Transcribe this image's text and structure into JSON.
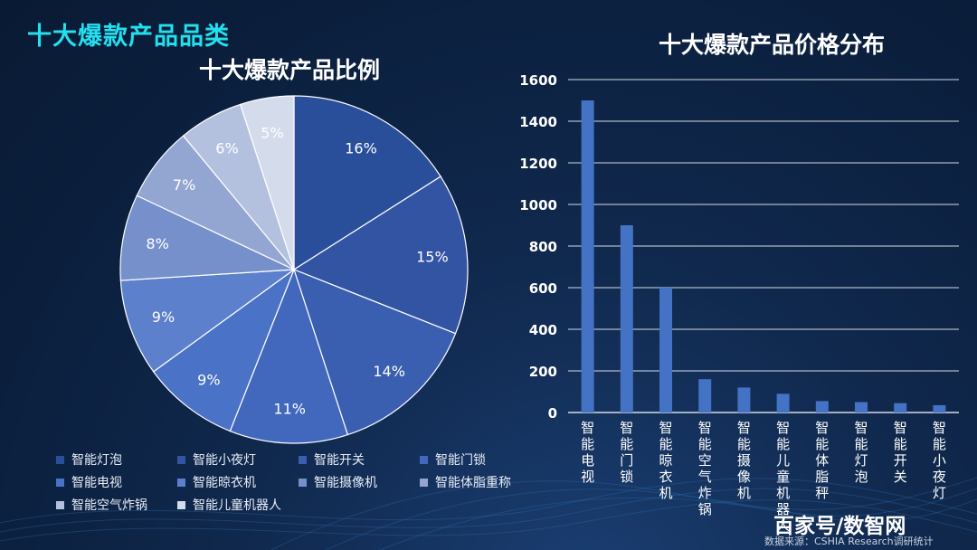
{
  "page": {
    "title": "十大爆款产品品类",
    "watermark": "百家号/数智网",
    "source": "数据来源：CSHIA Research调研统计"
  },
  "legend": [
    {
      "label": "智能灯泡",
      "color": "#2a4f9a"
    },
    {
      "label": "智能小夜灯",
      "color": "#3254a3"
    },
    {
      "label": "智能开关",
      "color": "#3a5fb0"
    },
    {
      "label": "智能门锁",
      "color": "#4168bd"
    },
    {
      "label": "智能电视",
      "color": "#4a72c7"
    },
    {
      "label": "智能晾衣机",
      "color": "#5c80cb"
    },
    {
      "label": "智能摄像机",
      "color": "#7590ca"
    },
    {
      "label": "智能体脂重称",
      "color": "#93a6d2"
    },
    {
      "label": "智能空气炸锅",
      "color": "#b4c1de"
    },
    {
      "label": "智能儿童机器人",
      "color": "#d4dcec"
    }
  ],
  "chart_data": [
    {
      "type": "pie",
      "title": "十大爆款产品比例",
      "labels": [
        "智能灯泡",
        "智能小夜灯",
        "智能开关",
        "智能门锁",
        "智能电视",
        "智能晾衣机",
        "智能摄像机",
        "智能体脂重称",
        "智能空气炸锅",
        "智能儿童机器人"
      ],
      "values": [
        16,
        15,
        14,
        11,
        9,
        9,
        8,
        7,
        6,
        5
      ],
      "value_labels": [
        "16%",
        "15%",
        "14%",
        "11%",
        "9%",
        "9%",
        "8%",
        "7%",
        "6%",
        "5%"
      ],
      "colors": [
        "#2a4f9a",
        "#3254a3",
        "#3a5fb0",
        "#4168bd",
        "#4a72c7",
        "#5c80cb",
        "#7590ca",
        "#93a6d2",
        "#b4c1de",
        "#d4dcec"
      ],
      "legend_position": "bottom"
    },
    {
      "type": "bar",
      "title": "十大爆款产品价格分布",
      "categories": [
        "智能电视",
        "智能门锁",
        "智能晾衣机",
        "智能空气炸锅",
        "智能摄像机",
        "智能儿童机器人",
        "智能体脂秤",
        "智能灯泡",
        "智能开关",
        "智能小夜灯"
      ],
      "values": [
        1500,
        900,
        600,
        160,
        120,
        90,
        55,
        50,
        45,
        35
      ],
      "ylim": [
        0,
        1600
      ],
      "yticks": [
        0,
        200,
        400,
        600,
        800,
        1000,
        1200,
        1400,
        1600
      ],
      "grid": true,
      "bar_color": "#4472c4"
    }
  ]
}
